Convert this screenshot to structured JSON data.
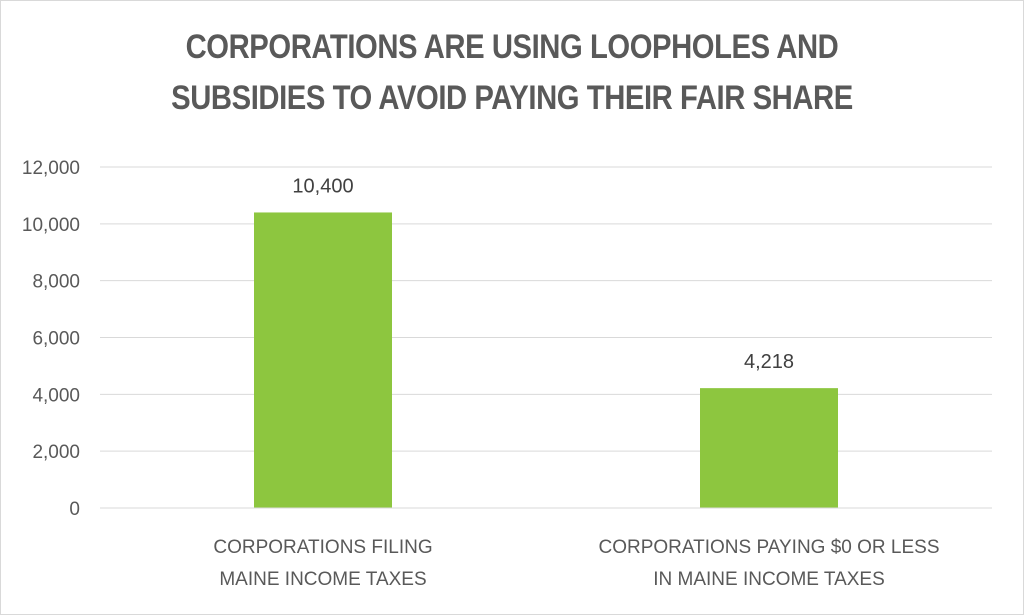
{
  "chart_data": {
    "type": "bar",
    "title_lines": [
      "CORPORATIONS ARE USING LOOPHOLES AND",
      "SUBSIDIES TO AVOID PAYING THEIR FAIR SHARE"
    ],
    "categories": [
      [
        "CORPORATIONS FILING",
        "MAINE INCOME TAXES"
      ],
      [
        "CORPORATIONS PAYING $0 OR LESS",
        "IN MAINE INCOME TAXES"
      ]
    ],
    "values": [
      10400,
      4218
    ],
    "data_labels": [
      "10,400",
      "4,218"
    ],
    "ylim": [
      0,
      12000
    ],
    "yticks": [
      0,
      2000,
      4000,
      6000,
      8000,
      10000,
      12000
    ],
    "ytick_labels": [
      "0",
      "2,000",
      "4,000",
      "6,000",
      "8,000",
      "10,000",
      "12,000"
    ],
    "grid": true,
    "legend": "none",
    "bar_color": "#8DC63F",
    "grid_color": "#d9d9d9",
    "text_color": "#595959"
  }
}
